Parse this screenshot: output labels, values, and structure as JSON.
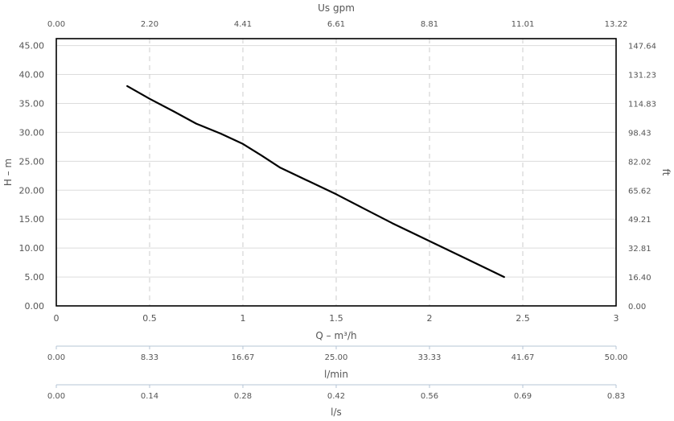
{
  "chart_data": {
    "type": "line",
    "grid": true,
    "left_axis": {
      "label": "H – m",
      "ticks": [
        "0.00",
        "5.00",
        "10.00",
        "15.00",
        "20.00",
        "25.00",
        "30.00",
        "35.00",
        "40.00",
        "45.00"
      ],
      "ylim": [
        0,
        46.2
      ]
    },
    "right_axis": {
      "label": "ft",
      "ticks": [
        "0.00",
        "16.40",
        "32.81",
        "49.21",
        "65.62",
        "82.02",
        "98.43",
        "114.83",
        "131.23",
        "147.64"
      ]
    },
    "top_axis": {
      "label": "Us gpm",
      "ticks": [
        "0.00",
        "2.20",
        "4.41",
        "6.61",
        "8.81",
        "11.01",
        "13.22"
      ]
    },
    "x_axis": {
      "label": "Q – m³/h",
      "ticks": [
        "0",
        "0.5",
        "1",
        "1.5",
        "2",
        "2.5",
        "3"
      ],
      "xlim": [
        0,
        3
      ]
    },
    "secondary_axes": [
      {
        "label": "l/min",
        "ticks": [
          "0.00",
          "8.33",
          "16.67",
          "25.00",
          "33.33",
          "41.67",
          "50.00"
        ]
      },
      {
        "label": "l/s",
        "ticks": [
          "0.00",
          "0.14",
          "0.28",
          "0.42",
          "0.56",
          "0.69",
          "0.83"
        ]
      }
    ],
    "series": [
      {
        "color": "#000000",
        "x": [
          0.38,
          0.5,
          0.63,
          0.75,
          0.88,
          1.0,
          1.1,
          1.2,
          1.35,
          1.5,
          1.65,
          1.8,
          2.0,
          2.2,
          2.4
        ],
        "y": [
          38.0,
          35.8,
          33.6,
          31.5,
          29.8,
          28.0,
          26.0,
          23.9,
          21.6,
          19.3,
          16.8,
          14.3,
          11.2,
          8.1,
          5.0
        ]
      }
    ]
  }
}
